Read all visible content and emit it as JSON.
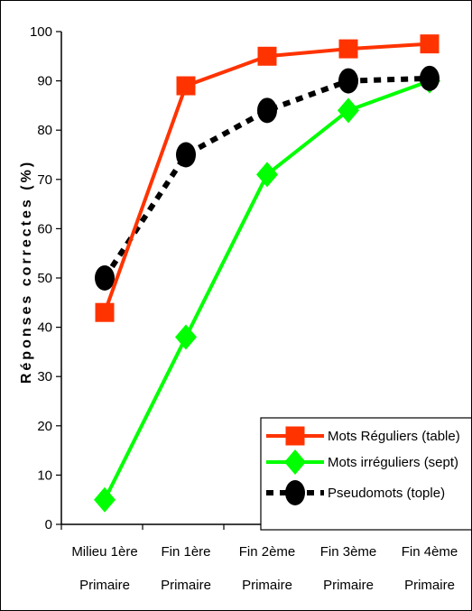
{
  "chart_data": {
    "type": "line",
    "ylabel": "Réponses correctes (%)",
    "ylim": [
      0,
      100
    ],
    "yticks": [
      0,
      10,
      20,
      30,
      40,
      50,
      60,
      70,
      80,
      90,
      100
    ],
    "grid": "none",
    "legend_position": "bottom-right",
    "categories": [
      [
        "Milieu 1ère",
        "Primaire"
      ],
      [
        "Fin 1ère",
        "Primaire"
      ],
      [
        "Fin 2ème",
        "Primaire"
      ],
      [
        "Fin 3ème",
        "Primaire"
      ],
      [
        "Fin 4ème",
        "Primaire"
      ]
    ],
    "series": [
      {
        "name": "Mots Réguliers (table)",
        "values": [
          43,
          89,
          95,
          96.5,
          97.5
        ],
        "color": "#ff3300",
        "marker": "square",
        "dash": "solid"
      },
      {
        "name": "Mots irréguliers (sept)",
        "values": [
          5,
          38,
          71,
          84,
          90
        ],
        "color": "#00ff00",
        "marker": "diamond",
        "dash": "solid"
      },
      {
        "name": "Pseudomots (tople)",
        "values": [
          50,
          75,
          84,
          90,
          90.5
        ],
        "color": "#000000",
        "marker": "circle",
        "dash": "dotted"
      }
    ]
  }
}
